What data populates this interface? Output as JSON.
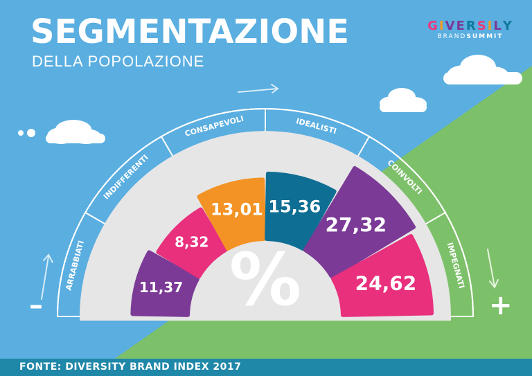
{
  "title": "SEGMENTAZIONE",
  "subtitle": "DELLA POPOLAZIONE",
  "logo": {
    "letters": [
      "G",
      "I",
      "V",
      "E",
      "R",
      "S",
      "I",
      "L",
      "Y"
    ],
    "letter_colors": [
      "#e83a7e",
      "#f39a25",
      "#7b3a96",
      "#7b3a96",
      "#0f7a9c",
      "#e83a7e",
      "#f39a25",
      "#7b3a96",
      "#0f7a9c"
    ],
    "sub_regular": "BRAND",
    "sub_bold": "SUMMIT"
  },
  "symbols": {
    "minus": "–",
    "plus": "+",
    "percent": "%"
  },
  "footer": "FONTE: DIVERSITY BRAND INDEX 2017",
  "colors": {
    "sky": "#5aaee0",
    "grass": "#7dc06a",
    "purple": "#7b3a96",
    "pink": "#e8307d",
    "orange": "#f39325",
    "teal": "#0f6e93",
    "gauge_bg": "#e6e6e6",
    "footer": "#1f87a8"
  },
  "chart_data": {
    "type": "gauge-bar",
    "unit": "%",
    "categories": [
      "ARRABBIATI",
      "INDIFFERENTI",
      "CONSAPEVOLI",
      "IDEALISTI",
      "COINVOLTI",
      "IMPEGNATI"
    ],
    "values": [
      11.37,
      8.32,
      13.01,
      15.36,
      27.32,
      24.62
    ],
    "value_labels": [
      "11,37",
      "8,32",
      "13,01",
      "15,36",
      "27,32",
      "24,62"
    ],
    "segment_colors": [
      "#7b3a96",
      "#e8307d",
      "#f39325",
      "#0f6e93",
      "#7b3a96",
      "#e8307d"
    ]
  }
}
